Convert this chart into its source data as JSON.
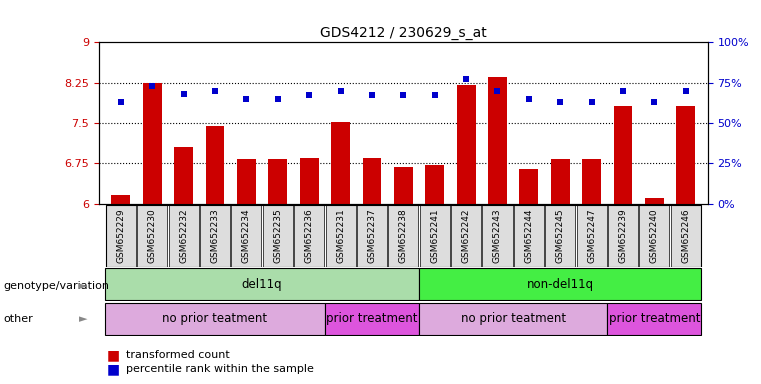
{
  "title": "GDS4212 / 230629_s_at",
  "samples": [
    "GSM652229",
    "GSM652230",
    "GSM652232",
    "GSM652233",
    "GSM652234",
    "GSM652235",
    "GSM652236",
    "GSM652231",
    "GSM652237",
    "GSM652238",
    "GSM652241",
    "GSM652242",
    "GSM652243",
    "GSM652244",
    "GSM652245",
    "GSM652247",
    "GSM652239",
    "GSM652240",
    "GSM652246"
  ],
  "red_values": [
    6.15,
    8.25,
    7.05,
    7.45,
    6.82,
    6.83,
    6.85,
    7.52,
    6.85,
    6.68,
    6.72,
    8.2,
    8.35,
    6.65,
    6.82,
    6.83,
    7.82,
    6.1,
    7.82
  ],
  "blue_values": [
    63,
    73,
    68,
    70,
    65,
    65,
    67,
    70,
    67,
    67,
    67,
    77,
    70,
    65,
    63,
    63,
    70,
    63,
    70
  ],
  "ylim_left": [
    6,
    9
  ],
  "ylim_right": [
    0,
    100
  ],
  "yticks_left": [
    6,
    6.75,
    7.5,
    8.25,
    9
  ],
  "yticks_right": [
    0,
    25,
    50,
    75,
    100
  ],
  "ytick_labels_right": [
    "0%",
    "25%",
    "50%",
    "75%",
    "100%"
  ],
  "hlines": [
    6.75,
    7.5,
    8.25
  ],
  "bar_color": "#cc0000",
  "dot_color": "#0000cc",
  "background_color": "#ffffff",
  "genotype_segs": [
    {
      "label": "del11q",
      "start": 0,
      "end": 10,
      "color": "#aaddaa"
    },
    {
      "label": "non-del11q",
      "start": 10,
      "end": 19,
      "color": "#44dd44"
    }
  ],
  "other_segs": [
    {
      "label": "no prior teatment",
      "start": 0,
      "end": 7,
      "color": "#ddaadd"
    },
    {
      "label": "prior treatment",
      "start": 7,
      "end": 10,
      "color": "#dd66dd"
    },
    {
      "label": "no prior teatment",
      "start": 10,
      "end": 16,
      "color": "#ddaadd"
    },
    {
      "label": "prior treatment",
      "start": 16,
      "end": 19,
      "color": "#dd66dd"
    }
  ],
  "legend_labels": [
    "transformed count",
    "percentile rank within the sample"
  ],
  "legend_colors": [
    "#cc0000",
    "#0000cc"
  ],
  "row_label_genotype": "genotype/variation",
  "row_label_other": "other",
  "bar_width": 0.6
}
